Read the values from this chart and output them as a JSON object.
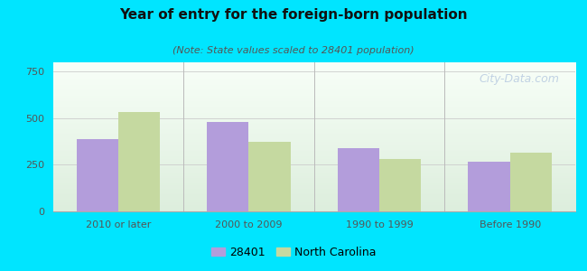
{
  "title": "Year of entry for the foreign-born population",
  "subtitle": "(Note: State values scaled to 28401 population)",
  "categories": [
    "2010 or later",
    "2000 to 2009",
    "1990 to 1999",
    "Before 1990"
  ],
  "values_28401": [
    390,
    480,
    340,
    265
  ],
  "values_nc": [
    535,
    375,
    280,
    315
  ],
  "color_28401": "#b39ddb",
  "color_nc": "#c5d9a0",
  "background_color": "#00e5ff",
  "plot_bg_top": "#e8f5e9",
  "plot_bg_bottom": "#f0fff0",
  "ylim": [
    0,
    800
  ],
  "yticks": [
    0,
    250,
    500,
    750
  ],
  "bar_width": 0.32,
  "title_fontsize": 11,
  "subtitle_fontsize": 8,
  "tick_fontsize": 8,
  "legend_fontsize": 9,
  "watermark_text": "City-Data.com",
  "watermark_color": "#b0c4de",
  "watermark_fontsize": 9,
  "legend_label_28401": "28401",
  "legend_label_nc": "North Carolina"
}
